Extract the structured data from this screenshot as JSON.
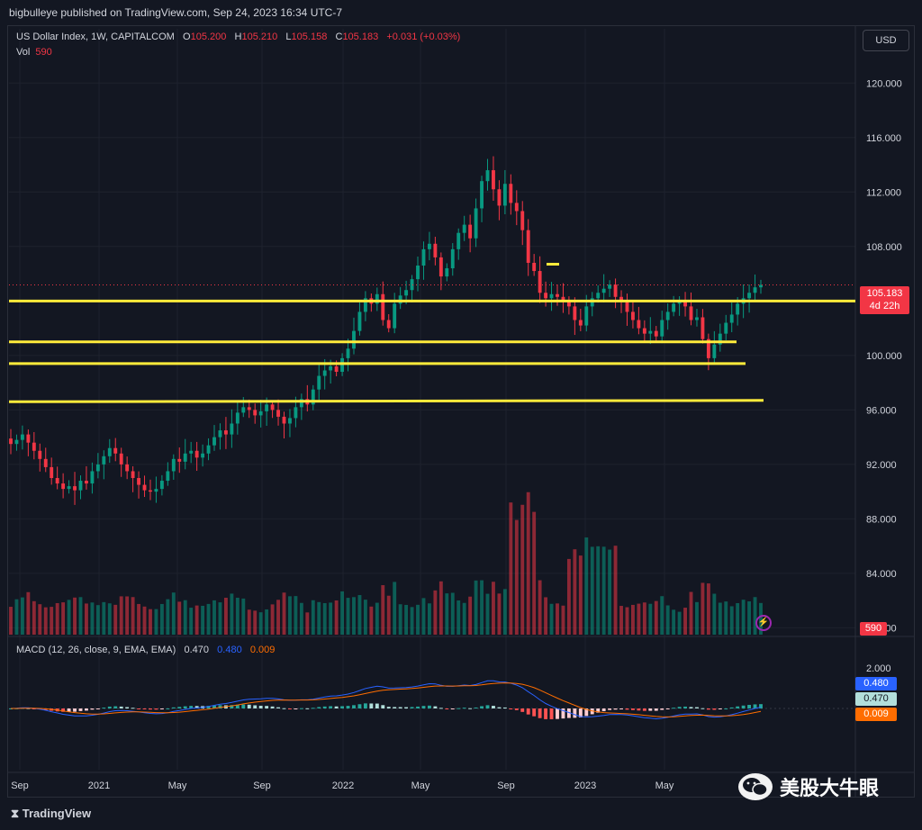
{
  "header": {
    "published": "bigbulleye published on TradingView.com, Sep 24, 2023 16:34 UTC-7"
  },
  "symbol": {
    "name": "US Dollar Index, 1W, CAPITALCOM",
    "o_label": "O",
    "o": "105.200",
    "h_label": "H",
    "h": "105.210",
    "l_label": "L",
    "l": "105.158",
    "c_label": "C",
    "c": "105.183",
    "change": "+0.031 (+0.03%)",
    "vol_label": "Vol",
    "vol": "590"
  },
  "currency_button": "USD",
  "price_tag": {
    "price": "105.183",
    "countdown": "4d 22h"
  },
  "volume_tag": "590",
  "price_axis": [
    "120.000",
    "116.000",
    "112.000",
    "108.000",
    "104.000",
    "100.000",
    "96.000",
    "92.000",
    "88.000",
    "84.000",
    "80.000"
  ],
  "macd": {
    "label": "MACD (12, 26, close, 9, EMA, EMA)",
    "hist": "0.470",
    "macd": "0.480",
    "signal": "0.009",
    "axis": [
      "2.000"
    ],
    "tags": [
      "0.480",
      "0.470",
      "0.009"
    ]
  },
  "time_axis": [
    "Sep",
    "2021",
    "May",
    "Sep",
    "2022",
    "May",
    "Sep",
    "2023",
    "May"
  ],
  "footer": {
    "logo": "TradingView"
  },
  "watermark": "美股大牛眼",
  "colors": {
    "up": "#089981",
    "down": "#f23645",
    "trendline": "#ffeb3b",
    "macd_line": "#2962ff",
    "signal_line": "#ff6d00"
  },
  "chart_data": {
    "type": "candlestick",
    "timeframe": "1W",
    "ylim": [
      79.5,
      122
    ],
    "levels": [
      104.0,
      101.0,
      99.4,
      96.6
    ],
    "close_series": [
      93.5,
      93.8,
      94.2,
      93.6,
      93.0,
      92.4,
      91.8,
      91.0,
      90.6,
      90.2,
      90.4,
      90.1,
      90.8,
      90.6,
      91.5,
      92.0,
      92.6,
      93.2,
      92.8,
      92.0,
      91.5,
      91.0,
      90.5,
      90.1,
      90.0,
      90.2,
      90.8,
      91.5,
      92.4,
      92.2,
      92.8,
      93.0,
      92.5,
      92.8,
      93.4,
      94.0,
      94.5,
      94.2,
      95.0,
      95.8,
      96.2,
      96.0,
      95.6,
      95.9,
      96.4,
      96.0,
      95.5,
      95.0,
      95.4,
      96.2,
      96.8,
      96.4,
      97.5,
      98.5,
      98.9,
      99.2,
      98.8,
      99.8,
      100.5,
      101.8,
      103.2,
      104.2,
      103.8,
      104.5,
      102.6,
      102.0,
      103.8,
      104.4,
      104.8,
      105.6,
      106.6,
      107.8,
      108.2,
      107.2,
      105.8,
      106.4,
      107.8,
      109.0,
      109.6,
      108.6,
      110.8,
      112.8,
      113.6,
      112.2,
      111.0,
      112.6,
      111.2,
      110.6,
      109.2,
      106.8,
      106.2,
      104.6,
      104.2,
      104.5,
      104.3,
      104.0,
      103.6,
      102.6,
      102.2,
      103.6,
      104.2,
      104.6,
      104.9,
      105.2,
      104.3,
      104.0,
      103.2,
      102.6,
      102.0,
      101.6,
      101.8,
      101.4,
      102.6,
      103.2,
      103.8,
      104.0,
      103.6,
      102.6,
      102.8,
      101.2,
      99.8,
      100.8,
      101.6,
      102.4,
      103.0,
      103.8,
      104.2,
      104.6,
      105.0,
      105.18
    ]
  }
}
